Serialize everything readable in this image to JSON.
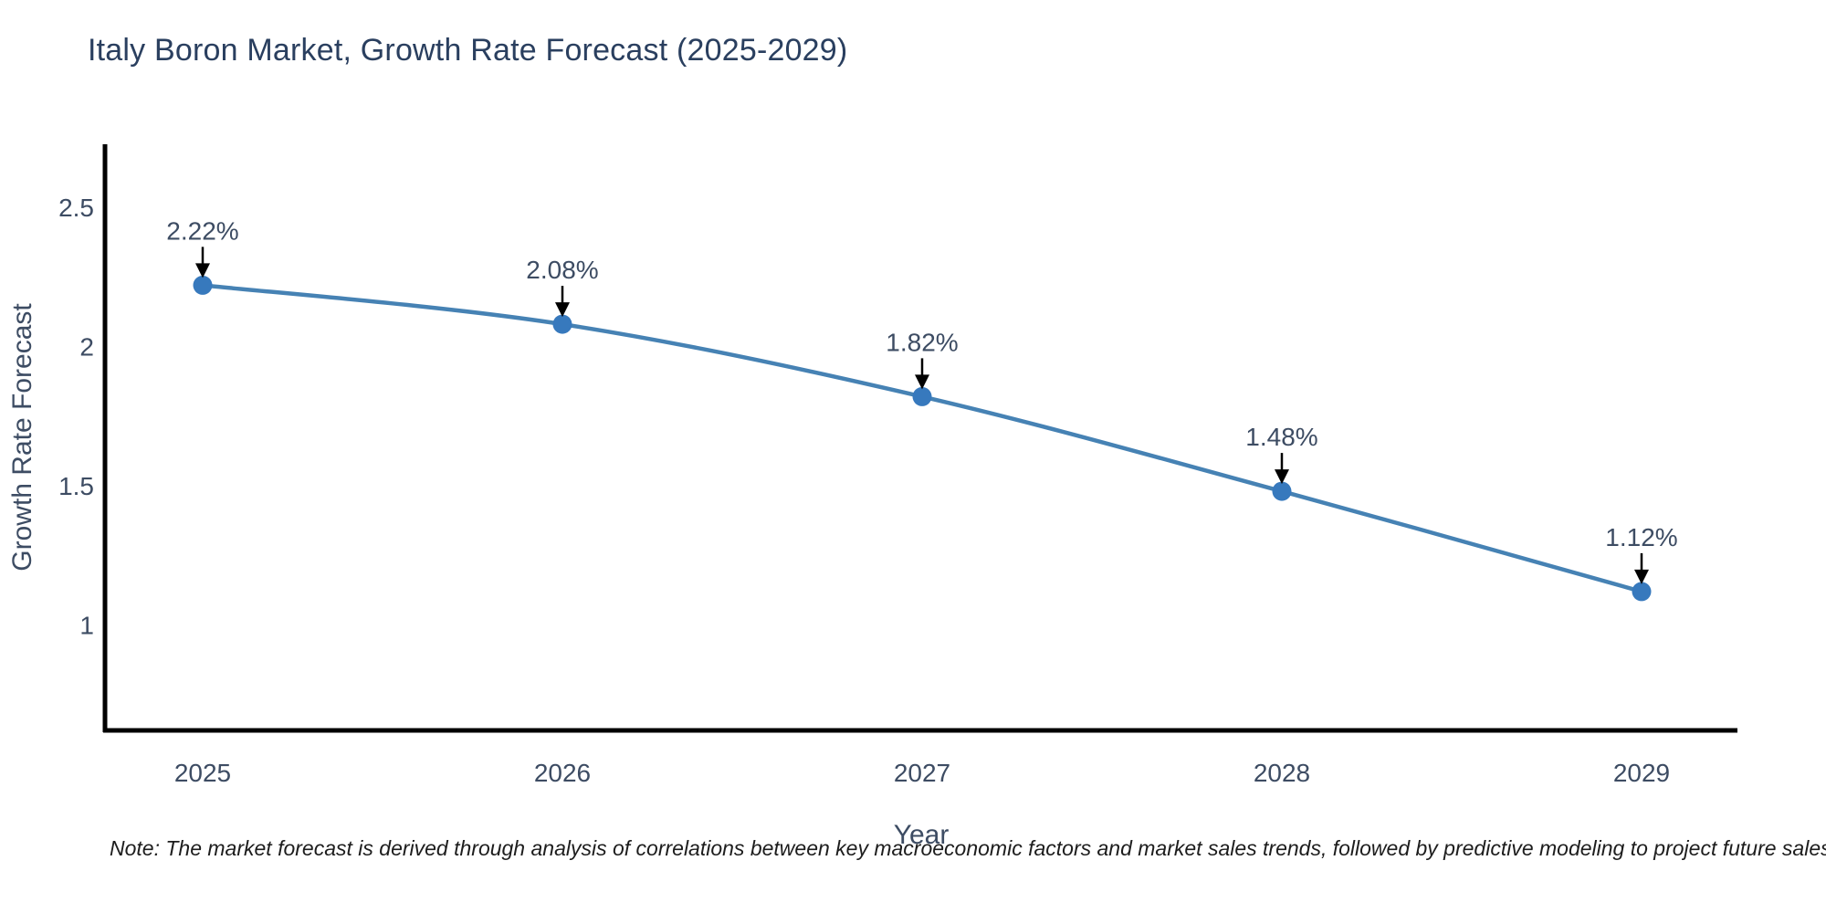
{
  "header": {
    "title": "Italy Boron Market, Growth Rate Forecast (2025-2029)"
  },
  "footer": {
    "note": "Note: The market forecast is derived through analysis of correlations between key macroeconomic factors and market sales trends, followed by predictive modeling to project future sales"
  },
  "chart_data": {
    "type": "line",
    "title": "Italy Boron Market, Growth Rate Forecast (2025-2029)",
    "categories": [
      "2025",
      "2026",
      "2027",
      "2028",
      "2029"
    ],
    "values": [
      2.22,
      2.08,
      1.82,
      1.48,
      1.12
    ],
    "point_labels": [
      "2.22%",
      "2.08%",
      "1.82%",
      "1.48%",
      "1.12%"
    ],
    "xlabel": "Year",
    "ylabel": "Growth Rate Forecast",
    "yticks": [
      2.5,
      2,
      1.5,
      1
    ],
    "ylim": [
      0.62,
      2.72
    ],
    "grid": false,
    "legend": "none",
    "colors": {
      "line": "#4682B4",
      "marker": "#3779BD",
      "axis": "#000000",
      "tick_text": "#3d4c63",
      "annotation_text": "#3d4c63",
      "arrow": "#000000",
      "title_text": "#2a3f5f"
    }
  }
}
